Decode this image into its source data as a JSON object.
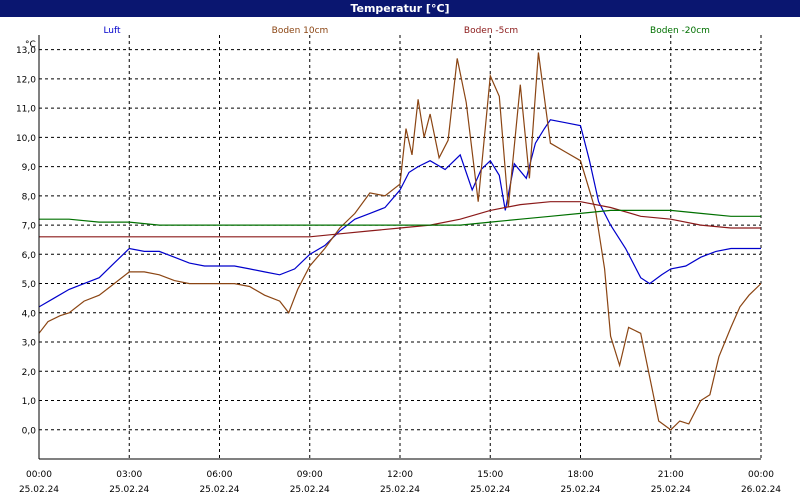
{
  "window": {
    "title": "Temperatur [°C]"
  },
  "chart_data": {
    "type": "line",
    "unit_label": "°C",
    "grid": true,
    "legend_placement": "top",
    "ylim": [
      -1.0,
      13.5
    ],
    "y_ticks": [
      "0,0",
      "1,0",
      "2,0",
      "3,0",
      "4,0",
      "5,0",
      "6,0",
      "7,0",
      "8,0",
      "9,0",
      "10,0",
      "11,0",
      "12,0",
      "13,0"
    ],
    "xlim_hours": [
      0,
      24
    ],
    "x_ticks": [
      {
        "time": "00:00",
        "date": "25.02.24"
      },
      {
        "time": "03:00",
        "date": "25.02.24"
      },
      {
        "time": "06:00",
        "date": "25.02.24"
      },
      {
        "time": "09:00",
        "date": "25.02.24"
      },
      {
        "time": "12:00",
        "date": "25.02.24"
      },
      {
        "time": "15:00",
        "date": "25.02.24"
      },
      {
        "time": "18:00",
        "date": "25.02.24"
      },
      {
        "time": "21:00",
        "date": "25.02.24"
      },
      {
        "time": "00:00",
        "date": "26.02.24"
      }
    ],
    "series": [
      {
        "name": "Luft",
        "color": "#0000cc",
        "points": [
          [
            0,
            4.2
          ],
          [
            0.5,
            4.5
          ],
          [
            1,
            4.8
          ],
          [
            1.5,
            5.0
          ],
          [
            2,
            5.2
          ],
          [
            2.5,
            5.7
          ],
          [
            3,
            6.2
          ],
          [
            3.5,
            6.1
          ],
          [
            4,
            6.1
          ],
          [
            4.5,
            5.9
          ],
          [
            5,
            5.7
          ],
          [
            5.5,
            5.6
          ],
          [
            6,
            5.6
          ],
          [
            6.5,
            5.6
          ],
          [
            7,
            5.5
          ],
          [
            7.5,
            5.4
          ],
          [
            8,
            5.3
          ],
          [
            8.5,
            5.5
          ],
          [
            9,
            6.0
          ],
          [
            9.5,
            6.3
          ],
          [
            10,
            6.8
          ],
          [
            10.5,
            7.2
          ],
          [
            11,
            7.4
          ],
          [
            11.5,
            7.6
          ],
          [
            12,
            8.2
          ],
          [
            12.3,
            8.8
          ],
          [
            12.6,
            9.0
          ],
          [
            13,
            9.2
          ],
          [
            13.5,
            8.9
          ],
          [
            14,
            9.4
          ],
          [
            14.4,
            8.2
          ],
          [
            14.7,
            8.9
          ],
          [
            15,
            9.2
          ],
          [
            15.3,
            8.7
          ],
          [
            15.5,
            7.5
          ],
          [
            15.8,
            9.1
          ],
          [
            16.2,
            8.6
          ],
          [
            16.5,
            9.8
          ],
          [
            16.8,
            10.3
          ],
          [
            17,
            10.6
          ],
          [
            17.5,
            10.5
          ],
          [
            18,
            10.4
          ],
          [
            18.3,
            9.2
          ],
          [
            18.6,
            7.8
          ],
          [
            19,
            7.0
          ],
          [
            19.5,
            6.2
          ],
          [
            20,
            5.2
          ],
          [
            20.3,
            5.0
          ],
          [
            20.7,
            5.3
          ],
          [
            21,
            5.5
          ],
          [
            21.5,
            5.6
          ],
          [
            22,
            5.9
          ],
          [
            22.5,
            6.1
          ],
          [
            23,
            6.2
          ],
          [
            23.5,
            6.2
          ],
          [
            24,
            6.2
          ]
        ]
      },
      {
        "name": "Boden 10cm",
        "color": "#8b4513",
        "points": [
          [
            0,
            3.3
          ],
          [
            0.3,
            3.7
          ],
          [
            0.7,
            3.9
          ],
          [
            1,
            4.0
          ],
          [
            1.5,
            4.4
          ],
          [
            2,
            4.6
          ],
          [
            2.5,
            5.0
          ],
          [
            3,
            5.4
          ],
          [
            3.5,
            5.4
          ],
          [
            4,
            5.3
          ],
          [
            4.5,
            5.1
          ],
          [
            5,
            5.0
          ],
          [
            5.5,
            5.0
          ],
          [
            6,
            5.0
          ],
          [
            6.5,
            5.0
          ],
          [
            7,
            4.9
          ],
          [
            7.5,
            4.6
          ],
          [
            8,
            4.4
          ],
          [
            8.3,
            4.0
          ],
          [
            8.6,
            4.8
          ],
          [
            9,
            5.6
          ],
          [
            9.5,
            6.2
          ],
          [
            10,
            6.9
          ],
          [
            10.5,
            7.4
          ],
          [
            11,
            8.1
          ],
          [
            11.5,
            8.0
          ],
          [
            12,
            8.4
          ],
          [
            12.2,
            10.3
          ],
          [
            12.4,
            9.4
          ],
          [
            12.6,
            11.3
          ],
          [
            12.8,
            10.0
          ],
          [
            13,
            10.8
          ],
          [
            13.3,
            9.3
          ],
          [
            13.6,
            9.9
          ],
          [
            13.9,
            12.7
          ],
          [
            14.2,
            11.2
          ],
          [
            14.6,
            7.8
          ],
          [
            15,
            12.1
          ],
          [
            15.3,
            11.4
          ],
          [
            15.6,
            7.6
          ],
          [
            16,
            11.8
          ],
          [
            16.3,
            8.6
          ],
          [
            16.6,
            12.9
          ],
          [
            17,
            9.8
          ],
          [
            17.5,
            9.5
          ],
          [
            18,
            9.2
          ],
          [
            18.5,
            7.5
          ],
          [
            18.8,
            5.5
          ],
          [
            19,
            3.2
          ],
          [
            19.3,
            2.2
          ],
          [
            19.6,
            3.5
          ],
          [
            20,
            3.3
          ],
          [
            20.3,
            1.8
          ],
          [
            20.6,
            0.3
          ],
          [
            21,
            0.0
          ],
          [
            21.3,
            0.3
          ],
          [
            21.6,
            0.2
          ],
          [
            22,
            1.0
          ],
          [
            22.3,
            1.2
          ],
          [
            22.6,
            2.5
          ],
          [
            23,
            3.5
          ],
          [
            23.3,
            4.2
          ],
          [
            23.6,
            4.6
          ],
          [
            24,
            5.0
          ],
          [
            24.5,
            5.2
          ],
          [
            25,
            5.3
          ]
        ]
      },
      {
        "name": "Boden -5cm",
        "color": "#8b1a1a",
        "points": [
          [
            0,
            6.6
          ],
          [
            1,
            6.6
          ],
          [
            2,
            6.6
          ],
          [
            3,
            6.6
          ],
          [
            4,
            6.6
          ],
          [
            5,
            6.6
          ],
          [
            6,
            6.6
          ],
          [
            7,
            6.6
          ],
          [
            8,
            6.6
          ],
          [
            9,
            6.6
          ],
          [
            10,
            6.7
          ],
          [
            11,
            6.8
          ],
          [
            12,
            6.9
          ],
          [
            13,
            7.0
          ],
          [
            14,
            7.2
          ],
          [
            15,
            7.5
          ],
          [
            16,
            7.7
          ],
          [
            17,
            7.8
          ],
          [
            18,
            7.8
          ],
          [
            19,
            7.6
          ],
          [
            20,
            7.3
          ],
          [
            21,
            7.2
          ],
          [
            22,
            7.0
          ],
          [
            23,
            6.9
          ],
          [
            24,
            6.9
          ]
        ]
      },
      {
        "name": "Boden -20cm",
        "color": "#007000",
        "points": [
          [
            0,
            7.2
          ],
          [
            1,
            7.2
          ],
          [
            2,
            7.1
          ],
          [
            3,
            7.1
          ],
          [
            4,
            7.0
          ],
          [
            5,
            7.0
          ],
          [
            6,
            7.0
          ],
          [
            7,
            7.0
          ],
          [
            8,
            7.0
          ],
          [
            9,
            7.0
          ],
          [
            10,
            7.0
          ],
          [
            11,
            7.0
          ],
          [
            12,
            7.0
          ],
          [
            13,
            7.0
          ],
          [
            14,
            7.0
          ],
          [
            15,
            7.1
          ],
          [
            16,
            7.2
          ],
          [
            17,
            7.3
          ],
          [
            18,
            7.4
          ],
          [
            19,
            7.5
          ],
          [
            20,
            7.5
          ],
          [
            21,
            7.5
          ],
          [
            22,
            7.4
          ],
          [
            23,
            7.3
          ],
          [
            24,
            7.3
          ]
        ]
      }
    ]
  }
}
